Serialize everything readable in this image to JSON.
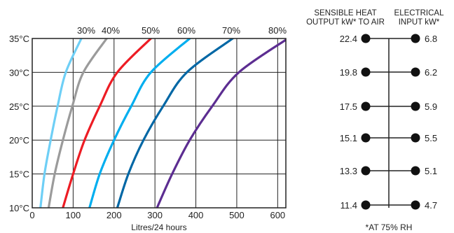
{
  "chart_data": {
    "type": "line",
    "xlabel": "Litres/24 hours",
    "xlim": [
      0,
      620
    ],
    "ylim": [
      10,
      35
    ],
    "x_ticks": [
      "0",
      "100",
      "200",
      "300",
      "400",
      "500",
      "600"
    ],
    "y_ticks": [
      "10°C",
      "15°C",
      "20°C",
      "25°C",
      "30°C",
      "35°C"
    ],
    "grid": true,
    "series": [
      {
        "name": "30%",
        "color": "#6ecff6",
        "points": [
          [
            20,
            10
          ],
          [
            30,
            15
          ],
          [
            45,
            20
          ],
          [
            62,
            25
          ],
          [
            82,
            30
          ],
          [
            120,
            35
          ]
        ]
      },
      {
        "name": "40%",
        "color": "#9b9b9b",
        "points": [
          [
            40,
            10
          ],
          [
            55,
            15
          ],
          [
            75,
            20
          ],
          [
            98,
            25
          ],
          [
            125,
            30
          ],
          [
            182,
            35
          ]
        ]
      },
      {
        "name": "50%",
        "color": "#ed1c24",
        "points": [
          [
            75,
            10
          ],
          [
            100,
            15
          ],
          [
            128,
            20
          ],
          [
            165,
            25
          ],
          [
            208,
            30
          ],
          [
            290,
            35
          ]
        ]
      },
      {
        "name": "60%",
        "color": "#00aeef",
        "points": [
          [
            140,
            10
          ],
          [
            165,
            15
          ],
          [
            200,
            20
          ],
          [
            242,
            25
          ],
          [
            290,
            30
          ],
          [
            385,
            35
          ]
        ]
      },
      {
        "name": "70%",
        "color": "#0067a5",
        "points": [
          [
            208,
            10
          ],
          [
            235,
            15
          ],
          [
            272,
            20
          ],
          [
            320,
            25
          ],
          [
            378,
            30
          ],
          [
            490,
            35
          ]
        ]
      },
      {
        "name": "80%",
        "color": "#5c2d91",
        "points": [
          [
            305,
            10
          ],
          [
            342,
            15
          ],
          [
            385,
            20
          ],
          [
            440,
            25
          ],
          [
            505,
            30
          ],
          [
            625,
            35
          ]
        ]
      }
    ]
  },
  "scale_panel": {
    "left_title": [
      "SENSIBLE HEAT",
      "OUTPUT kW* TO AIR"
    ],
    "right_title": [
      "ELECTRICAL",
      "INPUT kW*"
    ],
    "left_values": [
      "22.4",
      "19.8",
      "17.5",
      "15.1",
      "13.3",
      "11.4"
    ],
    "right_values": [
      "6.8",
      "6.2",
      "5.9",
      "5.5",
      "5.1",
      "4.7"
    ],
    "footnote": "*AT 75% RH"
  }
}
